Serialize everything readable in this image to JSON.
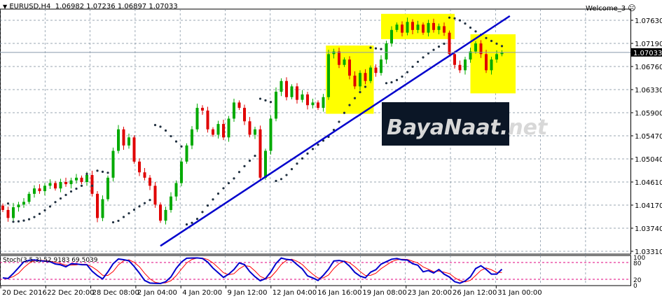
{
  "header": {
    "symbol": "EURUSD,H4",
    "open": "1.06982",
    "high": "1.07236",
    "low": "1.06897",
    "close": "1.07033",
    "collapse_icon": "triangle-down-icon"
  },
  "account": {
    "label": "Welcome_3",
    "icon": "sad-face-icon"
  },
  "watermark": {
    "text": "BayaNaat.net"
  },
  "colors": {
    "bull": "#00aa00",
    "bear": "#e00000",
    "sar": "#203040",
    "trendline": "#0000cc",
    "highlight": "#ffff00",
    "stoch_main": "#0000cc",
    "stoch_signal": "#ff0000",
    "levels": "#e0007f",
    "grid": "#778899"
  },
  "chart_data": {
    "type": "candlestick",
    "symbol": "EURUSD",
    "timeframe": "H4",
    "ylim": [
      1.0331,
      1.0785
    ],
    "y_ticks": [
      "1.07630",
      "1.07190",
      "1.06760",
      "1.06330",
      "1.05900",
      "1.05470",
      "1.05040",
      "1.04610",
      "1.04170",
      "1.03740",
      "1.03310"
    ],
    "x_ticks": [
      "20 Dec 2016",
      "22 Dec 20:00",
      "28 Dec 08:00",
      "2 Jan 04:00",
      "4 Jan 20:00",
      "9 Jan 12:00",
      "12 Jan 04:00",
      "16 Jan 16:00",
      "19 Jan 08:00",
      "23 Jan 20:00",
      "26 Jan 12:00",
      "31 Jan 00:00"
    ],
    "current_price": "1.07033",
    "closes_approx": [
      1.041,
      1.0395,
      1.0415,
      1.042,
      1.0425,
      1.044,
      1.045,
      1.0445,
      1.0455,
      1.046,
      1.045,
      1.0462,
      1.0458,
      1.0465,
      1.047,
      1.0462,
      1.0475,
      1.044,
      1.0395,
      1.043,
      1.047,
      1.052,
      1.056,
      1.053,
      1.0545,
      1.05,
      1.048,
      1.047,
      1.0455,
      1.042,
      1.039,
      1.041,
      1.0435,
      1.046,
      1.05,
      1.053,
      1.056,
      1.06,
      1.0595,
      1.056,
      1.055,
      1.057,
      1.0545,
      1.058,
      1.061,
      1.06,
      1.0575,
      1.055,
      1.056,
      1.047,
      1.052,
      1.058,
      1.063,
      1.065,
      1.062,
      1.064,
      1.0615,
      1.0625,
      1.0605,
      1.061,
      1.06,
      1.062,
      1.07,
      1.0705,
      1.068,
      1.069,
      1.066,
      1.064,
      1.0665,
      1.065,
      1.0675,
      1.0665,
      1.069,
      1.072,
      1.0745,
      1.0755,
      1.074,
      1.076,
      1.0745,
      1.0755,
      1.074,
      1.0758,
      1.0745,
      1.0752,
      1.074,
      1.07,
      1.068,
      1.067,
      1.069,
      1.0705,
      1.072,
      1.07,
      1.067,
      1.069,
      1.07,
      1.07033
    ],
    "trendline": {
      "from_bar": 30,
      "from_price": 1.0343,
      "to_bar": 96.5,
      "to_price": 1.0771
    },
    "highlight_boxes": [
      {
        "from_bar": 61.5,
        "to_bar": 70.6,
        "top": 1.0716,
        "bottom": 1.0589
      },
      {
        "from_bar": 72,
        "to_bar": 86,
        "top": 1.0775,
        "bottom": 1.0728
      },
      {
        "from_bar": 89,
        "to_bar": 97.6,
        "top": 1.0737,
        "bottom": 1.0627
      }
    ],
    "indicator": {
      "name": "Stoch(3,5,3)",
      "main": "52.9183",
      "signal": "69.5039",
      "levels": [
        80,
        20
      ],
      "range": [
        0,
        100
      ],
      "axis_labels": [
        "100",
        "80",
        "20",
        "0"
      ]
    }
  }
}
